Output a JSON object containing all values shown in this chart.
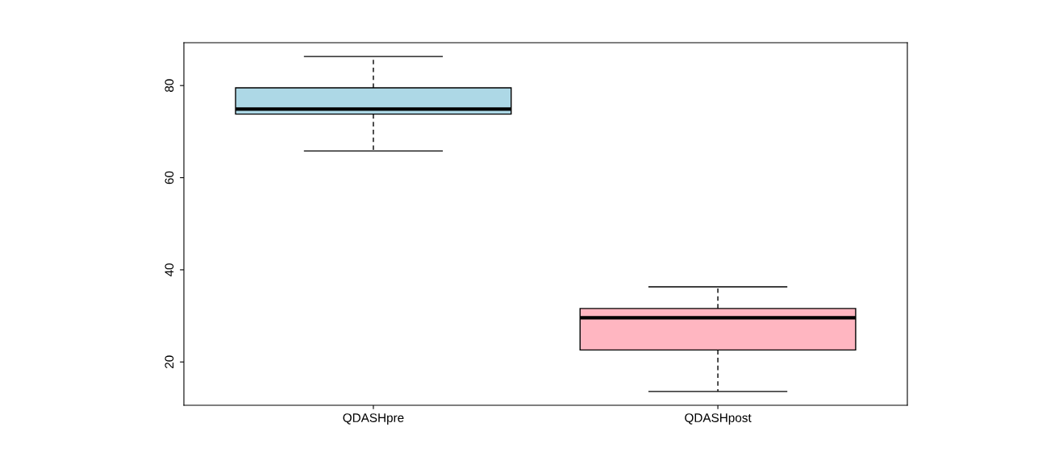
{
  "chart_data": {
    "type": "box",
    "categories": [
      "QDASHpre",
      "QDASHpost"
    ],
    "colors": [
      "#add8e6",
      "#ffb6c1"
    ],
    "boxes": [
      {
        "low": 65.8,
        "q1": 73.8,
        "median": 74.9,
        "q3": 79.5,
        "high": 86.3
      },
      {
        "low": 13.6,
        "q1": 22.6,
        "median": 29.6,
        "q3": 31.6,
        "high": 36.3
      }
    ],
    "ylim": [
      10.6,
      89.3
    ],
    "yticks": [
      20,
      40,
      60,
      80
    ],
    "grid": false,
    "legend": false
  }
}
